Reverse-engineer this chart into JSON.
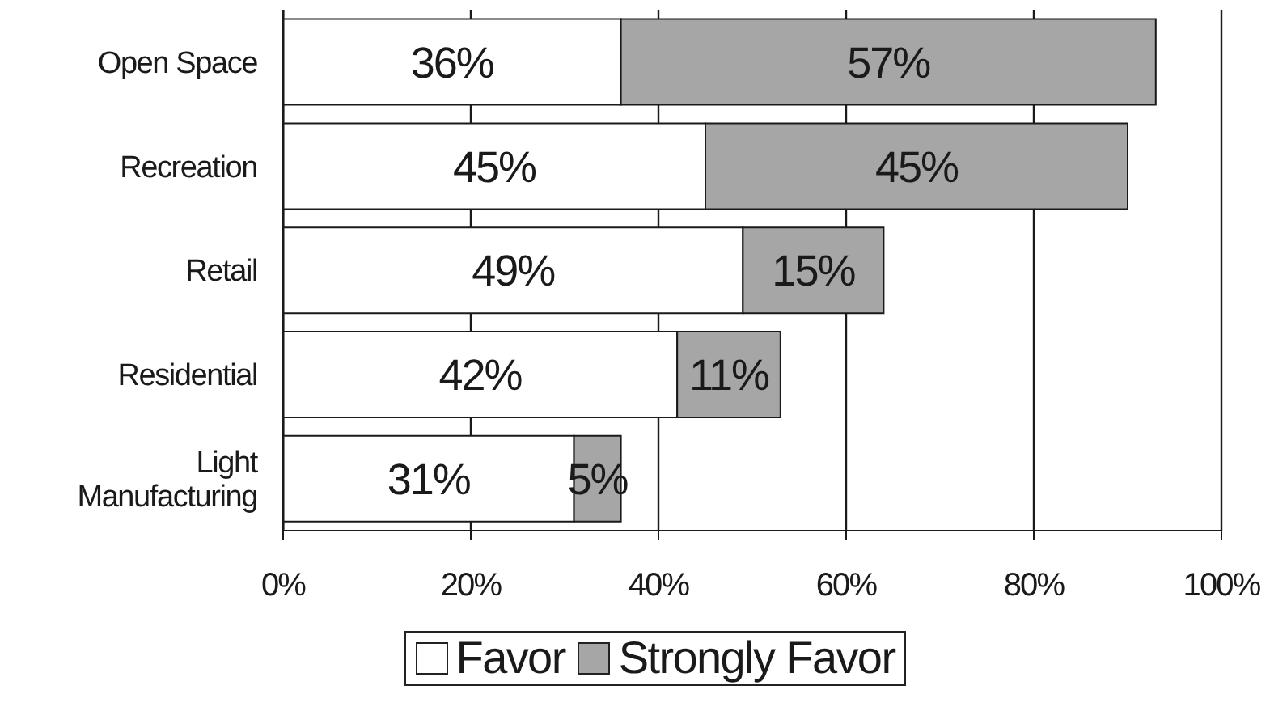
{
  "chart_data": {
    "type": "bar",
    "orientation": "horizontal",
    "stacked": true,
    "categories": [
      "Open Space",
      "Recreation",
      "Retail",
      "Residential",
      "Light Manufacturing"
    ],
    "series": [
      {
        "name": "Favor",
        "color": "#ffffff",
        "values": [
          36,
          45,
          49,
          42,
          31
        ],
        "value_labels": [
          "36%",
          "45%",
          "49%",
          "42%",
          "31%"
        ]
      },
      {
        "name": "Strongly Favor",
        "color": "#a6a6a6",
        "values": [
          57,
          45,
          15,
          11,
          5
        ],
        "value_labels": [
          "57%",
          "45%",
          "15%",
          "11%",
          "5%"
        ]
      }
    ],
    "xlim": [
      0,
      100
    ],
    "xticks": [
      {
        "value": 0,
        "label": "0%"
      },
      {
        "value": 20,
        "label": "20%"
      },
      {
        "value": 40,
        "label": "40%"
      },
      {
        "value": 60,
        "label": "60%"
      },
      {
        "value": 80,
        "label": "80%"
      },
      {
        "value": 100,
        "label": "100%"
      }
    ],
    "grid": "x",
    "legend": "bottom"
  }
}
